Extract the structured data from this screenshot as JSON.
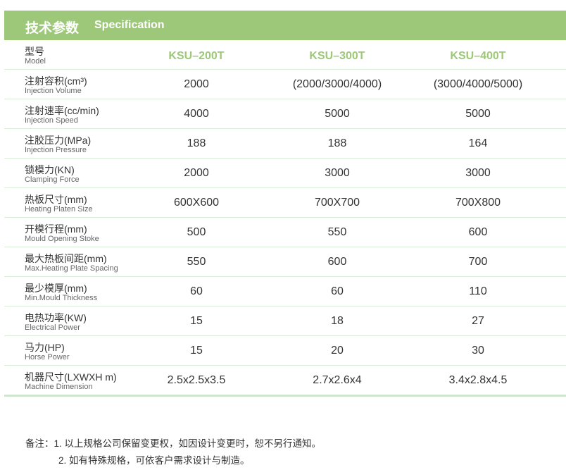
{
  "header": {
    "title_cn": "技术参数",
    "title_en": "Specification",
    "accent": "#9dc779"
  },
  "rows": [
    {
      "zh": "型号",
      "en": "Model",
      "values": [
        "KSU–200T",
        "KSU–300T",
        "KSU–400T"
      ]
    },
    {
      "zh": "注射容积(cm³)",
      "en": "Injection Volume",
      "values": [
        "2000",
        "(2000/3000/4000)",
        "(3000/4000/5000)"
      ]
    },
    {
      "zh": "注射速率(cc/min)",
      "en": "Injection Speed",
      "values": [
        "4000",
        "5000",
        "5000"
      ]
    },
    {
      "zh": "注胶压力(MPa)",
      "en": "Injection Pressure",
      "values": [
        "188",
        "188",
        "164"
      ]
    },
    {
      "zh": "锁模力(KN)",
      "en": "Clamping Force",
      "values": [
        "2000",
        "3000",
        "3000"
      ]
    },
    {
      "zh": "热板尺寸(mm)",
      "en": "Heating Platen Size",
      "values": [
        "600X600",
        "700X700",
        "700X800"
      ]
    },
    {
      "zh": "开模行程(mm)",
      "en": "Mould Opening Stoke",
      "values": [
        "500",
        "550",
        "600"
      ]
    },
    {
      "zh": "最大热板间距(mm)",
      "en": "Max.Heating Plate Spacing",
      "values": [
        "550",
        "600",
        "700"
      ]
    },
    {
      "zh": "最少模厚(mm)",
      "en": "Min.Mould Thickness",
      "values": [
        "60",
        "60",
        "110"
      ]
    },
    {
      "zh": "电热功率(KW)",
      "en": "Electrical Power",
      "values": [
        "15",
        "18",
        "27"
      ]
    },
    {
      "zh": "马力(HP)",
      "en": "Horse Power",
      "values": [
        "15",
        "20",
        "30"
      ]
    },
    {
      "zh": "机器尺寸(LXWXH m)",
      "en": "Machine Dimension",
      "values": [
        "2.5x2.5x3.5",
        "2.7x2.6x4",
        "3.4x2.8x4.5"
      ]
    }
  ],
  "notes": {
    "line1": "备注：1. 以上规格公司保留变更权，如因设计变更时，恕不另行通知。",
    "line2": "2. 如有特殊规格，可依客户需求设计与制造。"
  }
}
